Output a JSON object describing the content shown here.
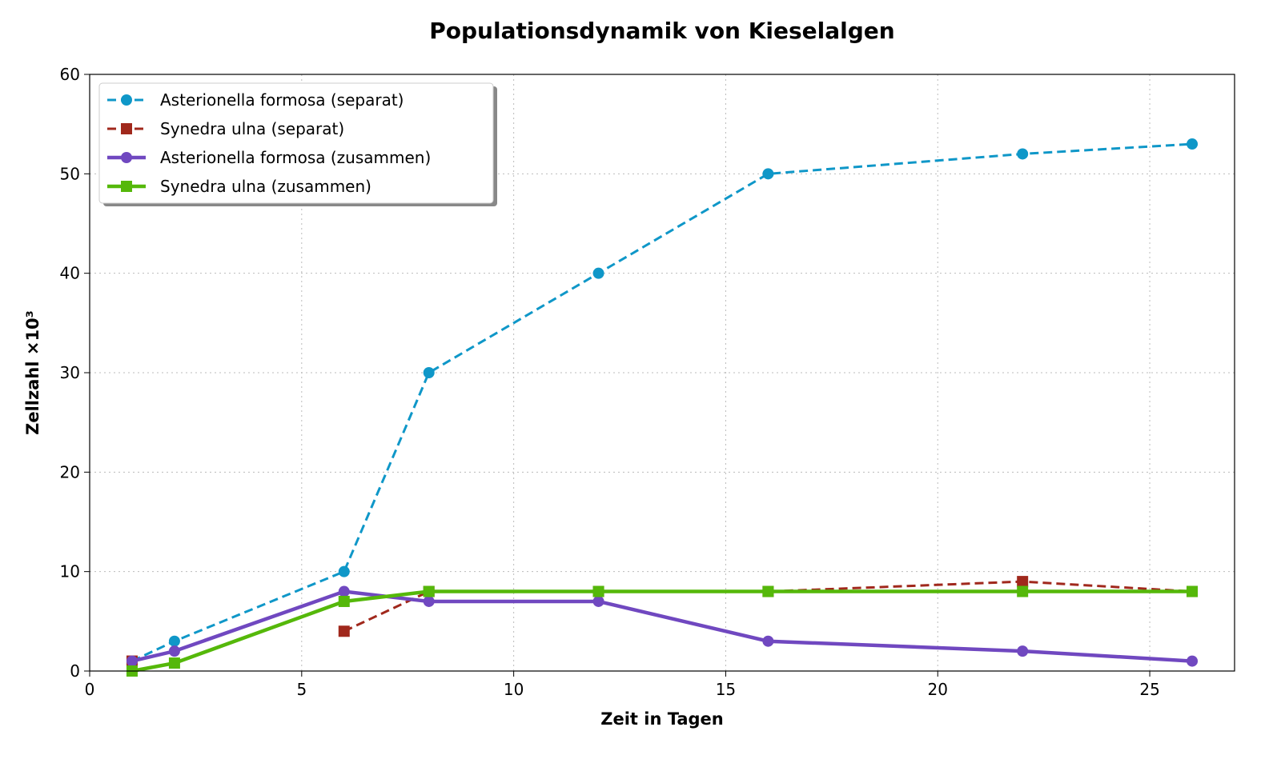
{
  "chart_data": {
    "type": "line",
    "title": "Populationsdynamik von Kieselalgen",
    "xlabel": "Zeit in Tagen",
    "ylabel": "Zellzahl ×10³",
    "xlim": [
      0,
      27
    ],
    "ylim": [
      0,
      60
    ],
    "xticks": [
      0,
      5,
      10,
      15,
      20,
      25
    ],
    "yticks": [
      0,
      10,
      20,
      30,
      40,
      50,
      60
    ],
    "grid": true,
    "legend_position": "top-left",
    "x": [
      1,
      2,
      6,
      8,
      12,
      16,
      22,
      26
    ],
    "series": [
      {
        "name": "Asterionella formosa (separat)",
        "color": "#0f97c8",
        "dash": true,
        "marker": "circle",
        "values": [
          1,
          3,
          10,
          30,
          40,
          50,
          52,
          53
        ]
      },
      {
        "name": "Synedra ulna (separat)",
        "color": "#a0281c",
        "dash": true,
        "marker": "square",
        "values": [
          1,
          null,
          4,
          8,
          8,
          8,
          9,
          8
        ]
      },
      {
        "name": "Asterionella formosa (zusammen)",
        "color": "#7048c0",
        "dash": false,
        "marker": "circle",
        "values": [
          1,
          2,
          8,
          7,
          7,
          3,
          2,
          1
        ]
      },
      {
        "name": "Synedra ulna (zusammen)",
        "color": "#55b80a",
        "dash": false,
        "marker": "square",
        "values": [
          0,
          0.8,
          7,
          8,
          8,
          8,
          8,
          8
        ]
      }
    ]
  }
}
